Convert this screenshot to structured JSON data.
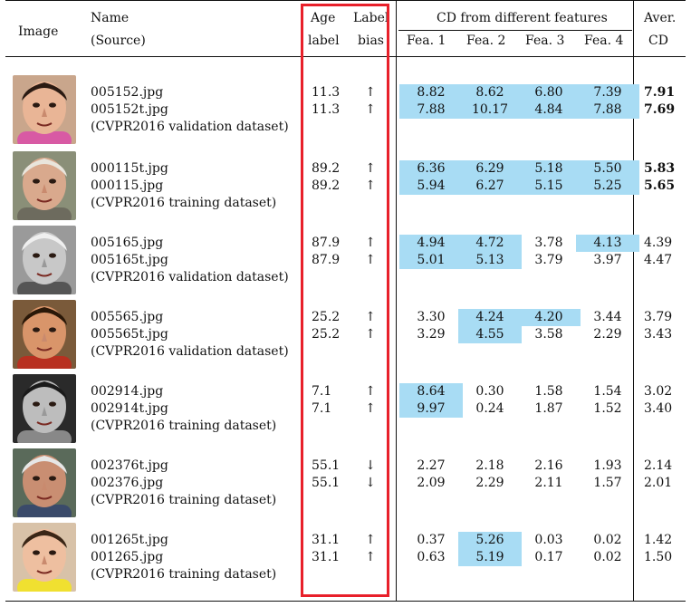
{
  "header": {
    "image": "Image",
    "name": "Name",
    "source": "(Source)",
    "age1": "Age",
    "age2": "label",
    "labelbias1": "Label",
    "labelbias2": "bias",
    "cd_group": "CD from different features",
    "fea1": "Fea. 1",
    "fea2": "Fea. 2",
    "fea3": "Fea. 3",
    "fea4": "Fea. 4",
    "aver1": "Aver.",
    "aver2": "CD"
  },
  "colors": {
    "highlight": "#a8dcf4",
    "redbox": "#e8202a"
  },
  "rows": [
    {
      "photo": "child-face-photo",
      "names": [
        "005152.jpg",
        "005152t.jpg"
      ],
      "source": "(CVPR2016 validation dataset)",
      "age": [
        "11.3",
        "11.3"
      ],
      "bias": [
        "↑",
        "↑"
      ],
      "fea": [
        [
          "8.82",
          "8.62",
          "6.80",
          "7.39"
        ],
        [
          "7.88",
          "10.17",
          "4.84",
          "7.88"
        ]
      ],
      "hl": [
        [
          true,
          true,
          true,
          true
        ],
        [
          true,
          true,
          true,
          true
        ]
      ],
      "aver": [
        "7.91",
        "7.69"
      ],
      "aver_bold": true
    },
    {
      "photo": "elderly-woman-face-photo",
      "names": [
        "000115t.jpg",
        "000115.jpg"
      ],
      "source": "(CVPR2016 training dataset)",
      "age": [
        "89.2",
        "89.2"
      ],
      "bias": [
        "↑",
        "↑"
      ],
      "fea": [
        [
          "6.36",
          "6.29",
          "5.18",
          "5.50"
        ],
        [
          "5.94",
          "6.27",
          "5.15",
          "5.25"
        ]
      ],
      "hl": [
        [
          true,
          true,
          true,
          true
        ],
        [
          true,
          true,
          true,
          true
        ]
      ],
      "aver": [
        "5.83",
        "5.65"
      ],
      "aver_bold": true
    },
    {
      "photo": "elderly-man-glasses-photo",
      "names": [
        "005165.jpg",
        "005165t.jpg"
      ],
      "source": "(CVPR2016 validation dataset)",
      "age": [
        "87.9",
        "87.9"
      ],
      "bias": [
        "↑",
        "↑"
      ],
      "fea": [
        [
          "4.94",
          "4.72",
          "3.78",
          "4.13"
        ],
        [
          "5.01",
          "5.13",
          "3.79",
          "3.97"
        ]
      ],
      "hl": [
        [
          true,
          true,
          false,
          true
        ],
        [
          true,
          true,
          false,
          false
        ]
      ],
      "aver": [
        "4.39",
        "4.47"
      ],
      "aver_bold": false
    },
    {
      "photo": "young-woman-glasses-photo",
      "names": [
        "005565.jpg",
        "005565t.jpg"
      ],
      "source": "(CVPR2016 validation dataset)",
      "age": [
        "25.2",
        "25.2"
      ],
      "bias": [
        "↑",
        "↑"
      ],
      "fea": [
        [
          "3.30",
          "4.24",
          "4.20",
          "3.44"
        ],
        [
          "3.29",
          "4.55",
          "3.58",
          "2.29"
        ]
      ],
      "hl": [
        [
          false,
          true,
          true,
          false
        ],
        [
          false,
          true,
          false,
          false
        ]
      ],
      "aver": [
        "3.79",
        "3.43"
      ],
      "aver_bold": false
    },
    {
      "photo": "crying-child-photo",
      "names": [
        "002914.jpg",
        "002914t.jpg"
      ],
      "source": "(CVPR2016 training dataset)",
      "age": [
        "7.1",
        "7.1"
      ],
      "bias": [
        "↑",
        "↑"
      ],
      "fea": [
        [
          "8.64",
          "0.30",
          "1.58",
          "1.54"
        ],
        [
          "9.97",
          "0.24",
          "1.87",
          "1.52"
        ]
      ],
      "hl": [
        [
          true,
          false,
          false,
          false
        ],
        [
          true,
          false,
          false,
          false
        ]
      ],
      "aver": [
        "3.02",
        "3.40"
      ],
      "aver_bold": false
    },
    {
      "photo": "middle-aged-man-photo",
      "names": [
        "002376t.jpg",
        "002376.jpg"
      ],
      "source": "(CVPR2016 training dataset)",
      "age": [
        "55.1",
        "55.1"
      ],
      "bias": [
        "↓",
        "↓"
      ],
      "fea": [
        [
          "2.27",
          "2.18",
          "2.16",
          "1.93"
        ],
        [
          "2.09",
          "2.29",
          "2.11",
          "1.57"
        ]
      ],
      "hl": [
        [
          false,
          false,
          false,
          false
        ],
        [
          false,
          false,
          false,
          false
        ]
      ],
      "aver": [
        "2.14",
        "2.01"
      ],
      "aver_bold": false
    },
    {
      "photo": "toddler-face-photo",
      "names": [
        "001265t.jpg",
        "001265.jpg"
      ],
      "source": "(CVPR2016 training dataset)",
      "age": [
        "31.1",
        "31.1"
      ],
      "bias": [
        "↑",
        "↑"
      ],
      "fea": [
        [
          "0.37",
          "5.26",
          "0.03",
          "0.02"
        ],
        [
          "0.63",
          "5.19",
          "0.17",
          "0.02"
        ]
      ],
      "hl": [
        [
          false,
          true,
          false,
          false
        ],
        [
          false,
          true,
          false,
          false
        ]
      ],
      "aver": [
        "1.42",
        "1.50"
      ],
      "aver_bold": false
    }
  ]
}
